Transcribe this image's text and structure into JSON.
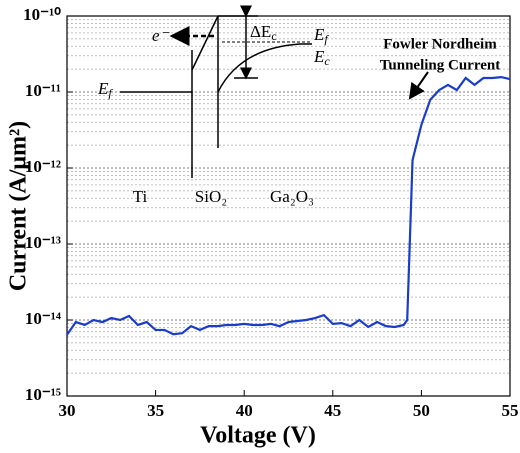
{
  "chart_data": {
    "type": "line",
    "xlabel": "Voltage (V)",
    "ylabel": "Current (A/μm²)",
    "log_y": true,
    "grid": true,
    "x": [
      30,
      30.5,
      31,
      31.5,
      32,
      32.5,
      33,
      33.5,
      34,
      34.5,
      35,
      35.5,
      36,
      36.5,
      37,
      37.5,
      38,
      38.5,
      39,
      39.5,
      40,
      40.5,
      41,
      41.5,
      42,
      42.5,
      43,
      43.5,
      44,
      44.5,
      45,
      45.5,
      46,
      46.5,
      47,
      47.5,
      48,
      48.5,
      49,
      49.2,
      49.5,
      50,
      50.5,
      51,
      51.5,
      52,
      52.5,
      53,
      53.5,
      54,
      54.5,
      55
    ],
    "series": [
      {
        "color": "#1a3cc8",
        "values": [
          6.4e-15,
          9.4e-15,
          8.6e-15,
          1e-14,
          9.4e-15,
          1.06e-14,
          1e-14,
          1.13e-14,
          8.6e-15,
          9.4e-15,
          7.4e-15,
          7.4e-15,
          6.5e-15,
          6.7e-15,
          8.3e-15,
          7.4e-15,
          8.3e-15,
          8.3e-15,
          8.6e-15,
          8.6e-15,
          8.9e-15,
          8.6e-15,
          8.6e-15,
          8.9e-15,
          8.3e-15,
          9.4e-15,
          9.7e-15,
          1e-14,
          1.06e-14,
          1.16e-14,
          8.9e-15,
          9.1e-15,
          8.3e-15,
          1e-14,
          8.1e-15,
          9.4e-15,
          8.3e-15,
          8.1e-15,
          8.6e-15,
          1e-14,
          1.27e-12,
          3.7e-12,
          7.9e-12,
          1.06e-11,
          1.24e-11,
          1.06e-11,
          1.53e-11,
          1.24e-11,
          1.53e-11,
          1.53e-11,
          1.57e-11,
          1.48e-11
        ]
      }
    ],
    "xlim": [
      30,
      55
    ],
    "xticks": [
      30,
      35,
      40,
      45,
      50,
      55
    ],
    "ylim": [
      1e-15,
      1e-10
    ],
    "yticks": [
      {
        "value": 1e-15,
        "label": "10⁻¹⁵"
      },
      {
        "value": 1e-14,
        "label": "10⁻¹⁴"
      },
      {
        "value": 1e-13,
        "label": "10⁻¹³"
      },
      {
        "value": 1e-12,
        "label": "10⁻¹²"
      },
      {
        "value": 1e-11,
        "label": "10⁻¹¹"
      },
      {
        "value": 1e-10,
        "label": "10⁻¹⁰"
      }
    ],
    "annotation": [
      "Fowler Nordheim",
      "Tunneling Current"
    ],
    "inset": {
      "electron": "e⁻",
      "delta_ec": {
        "main": "ΔE",
        "sub": "c"
      },
      "ef_right": {
        "main": "E",
        "sub": "f"
      },
      "ec_right": {
        "main": "E",
        "sub": "c"
      },
      "ef_left": {
        "main": "E",
        "sub": "f"
      },
      "regions": [
        "Ti",
        "SiO₂",
        "Ga₂O₃"
      ]
    }
  }
}
